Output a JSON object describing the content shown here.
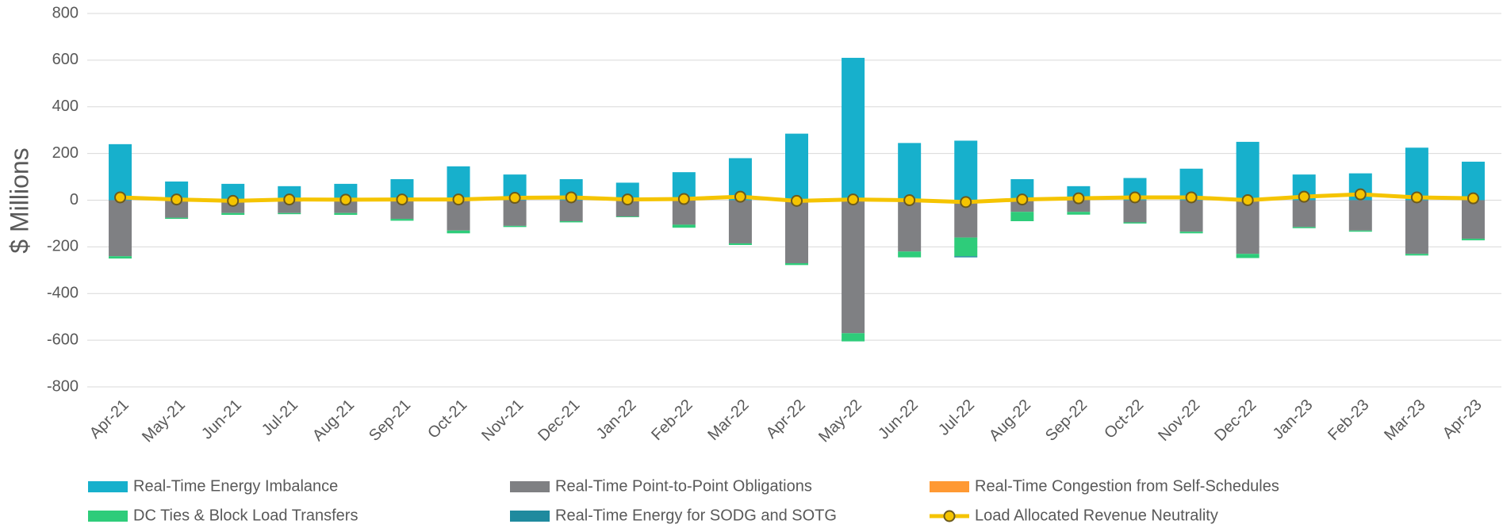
{
  "chart_data": {
    "type": "bar",
    "stacked": true,
    "y_label": "$ Millions",
    "categories": [
      "Apr-21",
      "May-21",
      "Jun-21",
      "Jul-21",
      "Aug-21",
      "Sep-21",
      "Oct-21",
      "Nov-21",
      "Dec-21",
      "Jan-22",
      "Feb-22",
      "Mar-22",
      "Apr-22",
      "May-22",
      "Jun-22",
      "Jul-22",
      "Aug-22",
      "Sep-22",
      "Oct-22",
      "Nov-22",
      "Dec-22",
      "Jan-23",
      "Feb-23",
      "Mar-23",
      "Apr-23"
    ],
    "series": [
      {
        "name": "Real-Time Energy Imbalance",
        "color": "#17b0cc",
        "values": [
          240,
          80,
          70,
          60,
          70,
          90,
          145,
          110,
          90,
          75,
          120,
          180,
          285,
          610,
          245,
          255,
          90,
          60,
          95,
          135,
          250,
          110,
          115,
          225,
          165
        ]
      },
      {
        "name": "Real-Time Point-to-Point Obligations",
        "color": "#7f8083",
        "values": [
          -240,
          -75,
          -55,
          -55,
          -55,
          -80,
          -130,
          -110,
          -90,
          -70,
          -105,
          -185,
          -270,
          -570,
          -220,
          -160,
          -50,
          -50,
          -95,
          -135,
          -230,
          -115,
          -130,
          -230,
          -165
        ]
      },
      {
        "name": "Real-Time Congestion from Self-Schedules",
        "color": "#ff9933",
        "values": [
          0,
          0,
          0,
          0,
          0,
          0,
          0,
          0,
          0,
          0,
          0,
          0,
          0,
          0,
          0,
          0,
          0,
          0,
          0,
          0,
          0,
          0,
          0,
          0,
          0
        ]
      },
      {
        "name": "DC Ties & Block Load Transfers",
        "color": "#2ecc7a",
        "values": [
          -10,
          -5,
          -8,
          -5,
          -8,
          -8,
          -12,
          -5,
          -5,
          -3,
          -13,
          -7,
          -8,
          -35,
          -25,
          -80,
          -40,
          -12,
          -5,
          -7,
          -18,
          -5,
          -5,
          -7,
          -7
        ]
      },
      {
        "name": "Real-Time Energy for SODG and SOTG",
        "color": "#1f8a9e",
        "values": [
          0,
          0,
          0,
          0,
          0,
          0,
          0,
          0,
          0,
          0,
          0,
          0,
          0,
          0,
          0,
          -5,
          0,
          0,
          0,
          0,
          0,
          0,
          0,
          0,
          0
        ]
      },
      {
        "name": "Load Allocated Revenue Neutrality",
        "color": "#f5c400",
        "type": "line",
        "marker_edge": "#6b5a1e",
        "values": [
          12,
          3,
          -3,
          3,
          2,
          3,
          3,
          10,
          12,
          3,
          5,
          15,
          -3,
          3,
          0,
          -8,
          3,
          8,
          12,
          12,
          0,
          15,
          25,
          12,
          8
        ]
      }
    ],
    "ylim": [
      -800,
      800
    ],
    "yticks": [
      -800,
      -600,
      -400,
      -200,
      0,
      200,
      400,
      600,
      800
    ],
    "grid": true
  }
}
